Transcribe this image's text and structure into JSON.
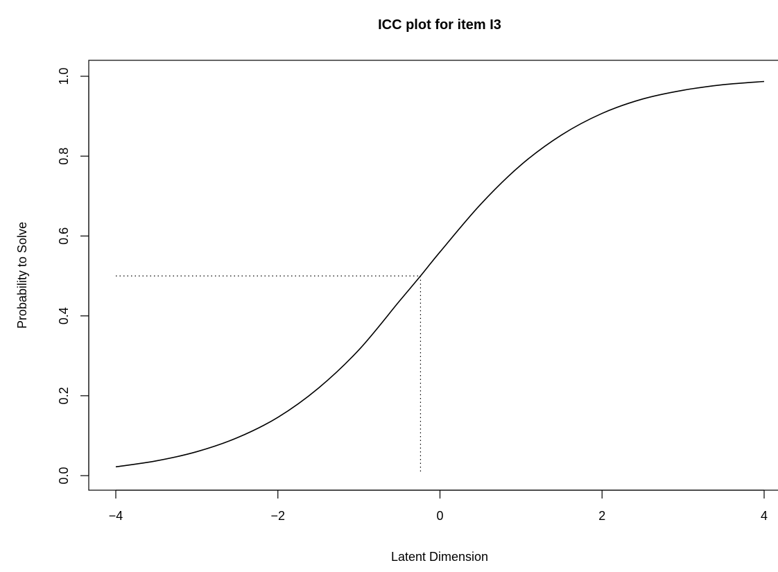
{
  "chart_data": {
    "type": "line",
    "title": "ICC plot for item  I3",
    "xlabel": "Latent Dimension",
    "ylabel": "Probability to Solve",
    "xlim": [
      -4,
      4
    ],
    "ylim": [
      0,
      1
    ],
    "x_ticks": [
      -4,
      -2,
      0,
      2,
      4
    ],
    "x_tick_labels": [
      "−4",
      "−2",
      "0",
      "2",
      "4"
    ],
    "y_ticks": [
      0.0,
      0.2,
      0.4,
      0.6,
      0.8,
      1.0
    ],
    "y_tick_labels": [
      "0.0",
      "0.2",
      "0.4",
      "0.6",
      "0.8",
      "1.0"
    ],
    "grid": false,
    "series": [
      {
        "x": [
          -4,
          -3.5,
          -3,
          -2.5,
          -2,
          -1.5,
          -1,
          -0.5,
          -0.24,
          0,
          0.5,
          1,
          1.5,
          2,
          2.5,
          3,
          3.5,
          4
        ],
        "y": [
          0.022,
          0.037,
          0.06,
          0.095,
          0.146,
          0.219,
          0.315,
          0.437,
          0.5,
          0.56,
          0.679,
          0.778,
          0.853,
          0.907,
          0.943,
          0.965,
          0.979,
          0.987
        ]
      }
    ],
    "reference_point": {
      "x": -0.24,
      "y": 0.5
    }
  }
}
